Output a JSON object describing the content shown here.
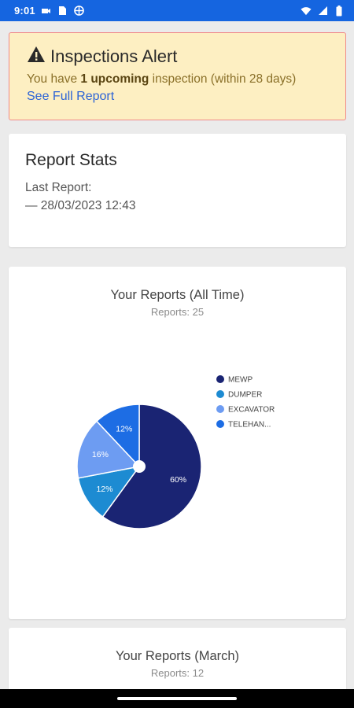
{
  "status_bar": {
    "time": "9:01",
    "left_icons": [
      "notification-icon",
      "sim-card-icon",
      "vpn-globe-icon"
    ],
    "right_icons": [
      "wifi-icon",
      "signal-icon",
      "battery-icon"
    ],
    "color": "#1565e0"
  },
  "alert": {
    "icon": "warning-triangle-icon",
    "title": "Inspections Alert",
    "message_prefix": "You have ",
    "message_bold": "1 upcoming",
    "message_suffix": " inspection (within 28 days)",
    "link": "See Full Report"
  },
  "stats": {
    "title": "Report Stats",
    "last_report_label": "Last Report:",
    "last_report_value": "— 28/03/2023 12:43"
  },
  "chart_all_time": {
    "title": "Your Reports (All Time)",
    "subtitle": "Reports: 25"
  },
  "chart_data": [
    {
      "type": "pie",
      "title": "Your Reports (All Time)",
      "subtitle": "Reports: 25",
      "categories": [
        "MEWP",
        "DUMPER",
        "EXCAVATOR",
        "TELEHAN..."
      ],
      "values": [
        60,
        12,
        16,
        12
      ],
      "value_labels": [
        "60%",
        "12%",
        "16%",
        "12%"
      ],
      "colors": [
        "#1a2473",
        "#1d8bd2",
        "#6d9cf2",
        "#1d6de4"
      ],
      "legend_position": "right"
    },
    {
      "type": "pie",
      "title": "Your Reports (March)",
      "subtitle": "Reports: 12"
    }
  ],
  "chart_march": {
    "title": "Your Reports (March)",
    "subtitle": "Reports: 12"
  }
}
